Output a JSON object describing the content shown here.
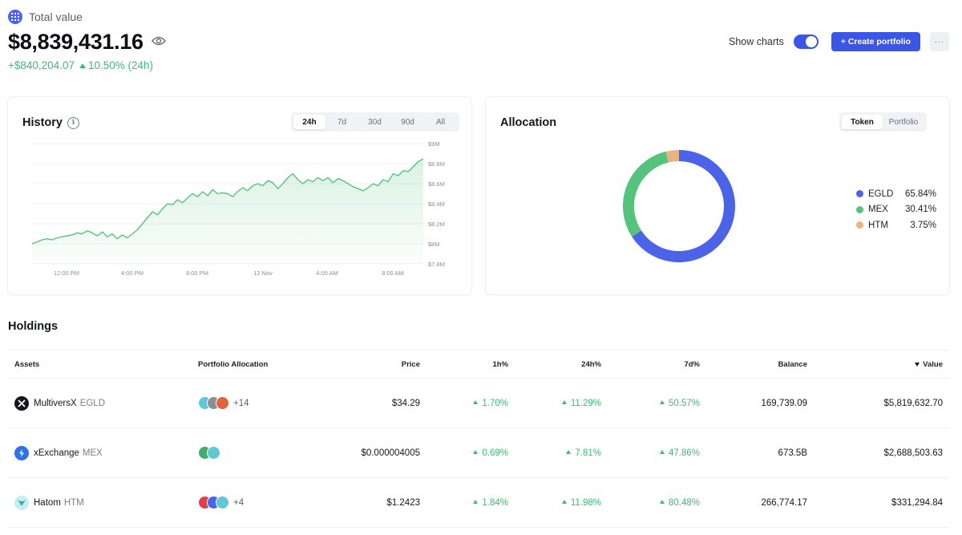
{
  "header": {
    "label": "Total value",
    "total": "$8,839,431.16",
    "change_abs": "+$840,204.07",
    "change_pct": "10.50% (24h)",
    "show_charts_label": "Show charts",
    "show_charts_on": true,
    "create_portfolio_label": "+ Create portfolio",
    "more_label": "···"
  },
  "history": {
    "title": "History",
    "ranges": [
      "24h",
      "7d",
      "30d",
      "90d",
      "All"
    ],
    "active_range": "24h"
  },
  "allocation": {
    "title": "Allocation",
    "modes": [
      "Token",
      "Portfolio"
    ],
    "active_mode": "Token",
    "items": [
      {
        "name": "EGLD",
        "pct": "65.84%",
        "value": 65.84,
        "color": "#4a63e7"
      },
      {
        "name": "MEX",
        "pct": "30.41%",
        "value": 30.41,
        "color": "#56c37d"
      },
      {
        "name": "HTM",
        "pct": "3.75%",
        "value": 3.75,
        "color": "#e9b382"
      }
    ]
  },
  "holdings": {
    "title": "Holdings",
    "columns": {
      "assets": "Assets",
      "allocation": "Portfolio Allocation",
      "price": "Price",
      "h1": "1h%",
      "h24": "24h%",
      "d7": "7d%",
      "balance": "Balance",
      "value": "Value"
    },
    "rows": [
      {
        "name": "MultiversX",
        "symbol": "EGLD",
        "icon": "multiversx-icon",
        "icon_color": "#16171c",
        "avatars": [
          "#5fc7d6",
          "#8a8f99",
          "#e0633a"
        ],
        "more": "+14",
        "price": "$34.29",
        "h1": "1.70%",
        "h24": "11.29%",
        "d7": "50.57%",
        "balance": "169,739.09",
        "value": "$5,819,632.70"
      },
      {
        "name": "xExchange",
        "symbol": "MEX",
        "icon": "xexchange-icon",
        "icon_color": "#2f6fe8",
        "avatars": [
          "#3fae6a",
          "#5fc7d6"
        ],
        "more": "",
        "price": "$0.000004005",
        "h1": "0.69%",
        "h24": "7.81%",
        "d7": "47.86%",
        "balance": "673.5B",
        "value": "$2,688,503.63"
      },
      {
        "name": "Hatom",
        "symbol": "HTM",
        "icon": "hatom-icon",
        "icon_color": "#9ee0e2",
        "avatars": [
          "#e0404a",
          "#4a63e7",
          "#5fc7d6"
        ],
        "more": "+4",
        "price": "$1.2423",
        "h1": "1.84%",
        "h24": "11.98%",
        "d7": "80.48%",
        "balance": "266,774.17",
        "value": "$331,294.84"
      }
    ]
  },
  "chart_data": {
    "type": "area",
    "title": "History",
    "xlabel": "",
    "ylabel": "",
    "x_ticks": [
      "12:00 PM",
      "4:00 PM",
      "8:00 PM",
      "12 Nov",
      "4:00 AM",
      "8:00 AM"
    ],
    "y_ticks": [
      "$9M",
      "$8.8M",
      "$8.6M",
      "$8.4M",
      "$8.2M",
      "$8M",
      "$7.8M"
    ],
    "ylim": [
      7.8,
      9.0
    ],
    "series": [
      {
        "name": "Total value ($M)",
        "values": [
          8.0,
          8.02,
          8.04,
          8.05,
          8.04,
          8.06,
          8.07,
          8.08,
          8.09,
          8.11,
          8.1,
          8.13,
          8.11,
          8.08,
          8.12,
          8.07,
          8.1,
          8.05,
          8.09,
          8.06,
          8.1,
          8.14,
          8.2,
          8.26,
          8.32,
          8.29,
          8.35,
          8.4,
          8.39,
          8.44,
          8.41,
          8.46,
          8.5,
          8.47,
          8.52,
          8.48,
          8.54,
          8.5,
          8.51,
          8.5,
          8.47,
          8.52,
          8.56,
          8.53,
          8.58,
          8.6,
          8.58,
          8.63,
          8.61,
          8.55,
          8.6,
          8.66,
          8.7,
          8.64,
          8.6,
          8.64,
          8.62,
          8.66,
          8.63,
          8.66,
          8.61,
          8.65,
          8.63,
          8.6,
          8.57,
          8.55,
          8.53,
          8.56,
          8.6,
          8.58,
          8.64,
          8.62,
          8.7,
          8.68,
          8.73,
          8.72,
          8.77,
          8.82,
          8.85
        ]
      }
    ]
  }
}
